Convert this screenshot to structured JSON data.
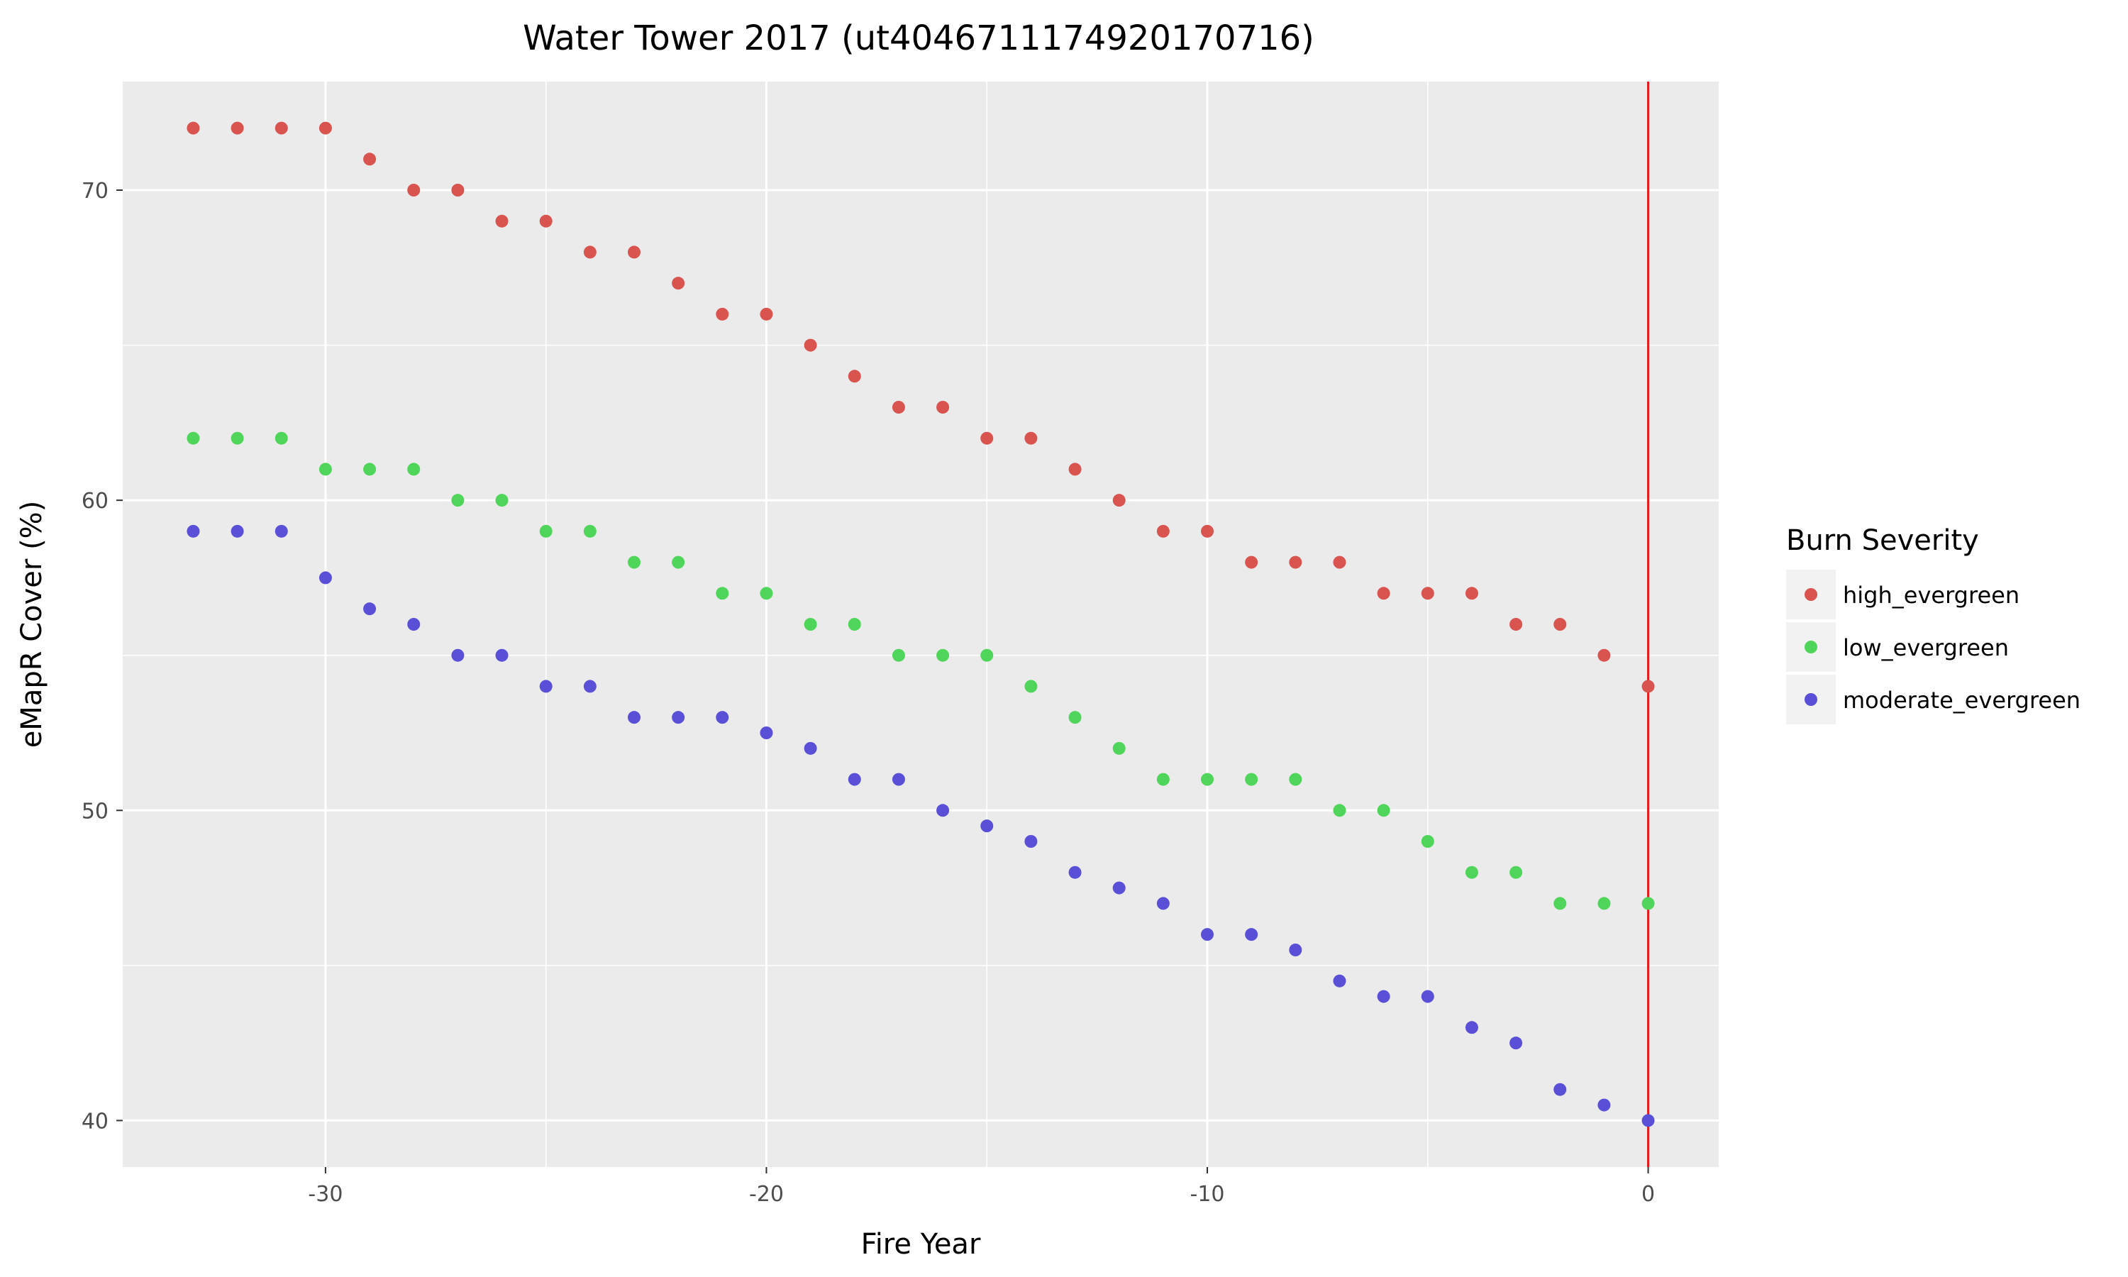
{
  "chart_data": {
    "type": "scatter",
    "title": "Water Tower 2017 (ut4046711174920170716)",
    "xlabel": "Fire Year",
    "ylabel": "eMapR Cover (%)",
    "xlim": [
      -34.6,
      1.6
    ],
    "ylim": [
      38.5,
      73.5
    ],
    "x_ticks": [
      -30,
      -20,
      -10,
      0
    ],
    "y_ticks": [
      40,
      50,
      60,
      70
    ],
    "grid": true,
    "vline": {
      "x": 0,
      "color": "#e41a1c"
    },
    "legend": {
      "title": "Burn Severity",
      "placement": "right"
    },
    "x": [
      -33,
      -32,
      -31,
      -30,
      -29,
      -28,
      -27,
      -26,
      -25,
      -24,
      -23,
      -22,
      -21,
      -20,
      -19,
      -18,
      -17,
      -16,
      -15,
      -14,
      -13,
      -12,
      -11,
      -10,
      -9,
      -8,
      -7,
      -6,
      -5,
      -4,
      -3,
      -2,
      -1,
      0
    ],
    "series": [
      {
        "name": "high_evergreen",
        "color": "#d9534f",
        "values": [
          72,
          72,
          72,
          72,
          71,
          70,
          70,
          69,
          69,
          68,
          68,
          67,
          66,
          66,
          65,
          64,
          63,
          63,
          62,
          62,
          61,
          60,
          59,
          59,
          58,
          58,
          58,
          57,
          57,
          57,
          56,
          56,
          55,
          54
        ]
      },
      {
        "name": "low_evergreen",
        "color": "#4fd65a",
        "values": [
          62,
          62,
          62,
          61,
          61,
          61,
          60,
          60,
          59,
          59,
          58,
          58,
          57,
          57,
          56,
          56,
          55,
          55,
          55,
          54,
          53,
          52,
          51,
          51,
          51,
          51,
          50,
          50,
          49,
          48,
          48,
          47,
          47,
          47
        ]
      },
      {
        "name": "moderate_evergreen",
        "color": "#5a50d8",
        "values": [
          59,
          59,
          59,
          57.5,
          56.5,
          56,
          55,
          55,
          54,
          54,
          53,
          53,
          53,
          52.5,
          52,
          51,
          51,
          50,
          49.5,
          49,
          48,
          47.5,
          47,
          46,
          46,
          45.5,
          44.5,
          44,
          44,
          43,
          42.5,
          41,
          40.5,
          40
        ]
      }
    ]
  }
}
